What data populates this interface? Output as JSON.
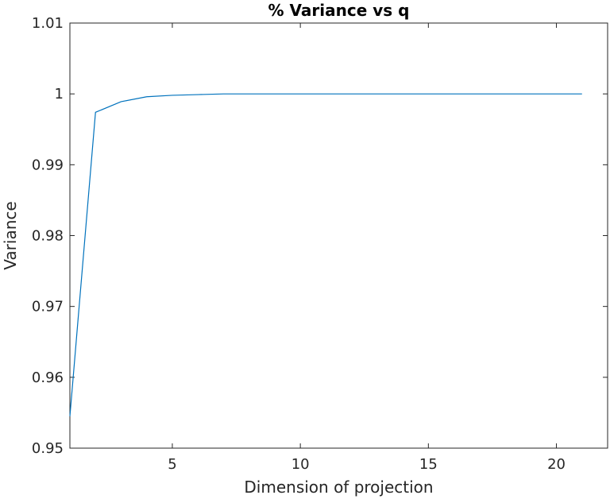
{
  "chart_data": {
    "type": "line",
    "title": "% Variance vs q",
    "xlabel": "Dimension of projection",
    "ylabel": "Variance",
    "xlim": [
      1,
      22
    ],
    "ylim": [
      0.95,
      1.01
    ],
    "xticks": [
      5,
      10,
      15,
      20
    ],
    "yticks": [
      0.95,
      0.96,
      0.97,
      0.98,
      0.99,
      1,
      1.01
    ],
    "xtick_labels": [
      "5",
      "10",
      "15",
      "20"
    ],
    "ytick_labels": [
      "0.95",
      "0.96",
      "0.97",
      "0.98",
      "0.99",
      "1",
      "1.01"
    ],
    "grid": false,
    "series": [
      {
        "color": "#0072bd",
        "x": [
          1,
          2,
          3,
          4,
          5,
          6,
          7,
          8,
          9,
          10,
          11,
          12,
          13,
          14,
          15,
          16,
          17,
          18,
          19,
          20,
          21
        ],
        "y": [
          0.9545,
          0.9974,
          0.9989,
          0.9996,
          0.9998,
          0.9999,
          1.0,
          1.0,
          1.0,
          1.0,
          1.0,
          1.0,
          1.0,
          1.0,
          1.0,
          1.0,
          1.0,
          1.0,
          1.0,
          1.0,
          1.0
        ]
      }
    ]
  }
}
